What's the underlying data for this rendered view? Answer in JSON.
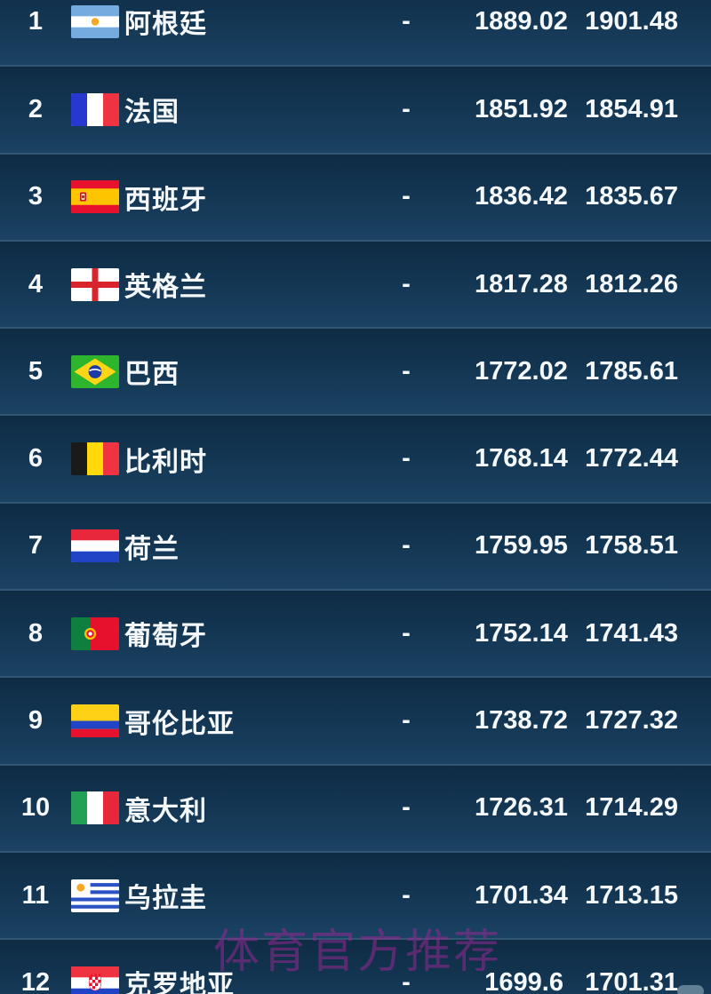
{
  "table": {
    "rows": [
      {
        "rank": "1",
        "country": "阿根廷",
        "flag": "argentina-flag",
        "move": "-",
        "points_current": "1889.02",
        "points_previous": "1901.48"
      },
      {
        "rank": "2",
        "country": "法国",
        "flag": "france-flag",
        "move": "-",
        "points_current": "1851.92",
        "points_previous": "1854.91"
      },
      {
        "rank": "3",
        "country": "西班牙",
        "flag": "spain-flag",
        "move": "-",
        "points_current": "1836.42",
        "points_previous": "1835.67"
      },
      {
        "rank": "4",
        "country": "英格兰",
        "flag": "england-flag",
        "move": "-",
        "points_current": "1817.28",
        "points_previous": "1812.26"
      },
      {
        "rank": "5",
        "country": "巴西",
        "flag": "brazil-flag",
        "move": "-",
        "points_current": "1772.02",
        "points_previous": "1785.61"
      },
      {
        "rank": "6",
        "country": "比利时",
        "flag": "belgium-flag",
        "move": "-",
        "points_current": "1768.14",
        "points_previous": "1772.44"
      },
      {
        "rank": "7",
        "country": "荷兰",
        "flag": "netherlands-flag",
        "move": "-",
        "points_current": "1759.95",
        "points_previous": "1758.51"
      },
      {
        "rank": "8",
        "country": "葡萄牙",
        "flag": "portugal-flag",
        "move": "-",
        "points_current": "1752.14",
        "points_previous": "1741.43"
      },
      {
        "rank": "9",
        "country": "哥伦比亚",
        "flag": "colombia-flag",
        "move": "-",
        "points_current": "1738.72",
        "points_previous": "1727.32"
      },
      {
        "rank": "10",
        "country": "意大利",
        "flag": "italy-flag",
        "move": "-",
        "points_current": "1726.31",
        "points_previous": "1714.29"
      },
      {
        "rank": "11",
        "country": "乌拉圭",
        "flag": "uruguay-flag",
        "move": "-",
        "points_current": "1701.34",
        "points_previous": "1713.15"
      },
      {
        "rank": "12",
        "country": "克罗地亚",
        "flag": "croatia-flag",
        "move": "-",
        "points_current": "1699.6",
        "points_previous": "1701.31"
      }
    ]
  },
  "watermark": {
    "text": "体育官方推荐"
  },
  "colors": {
    "background": "#112f4a",
    "row_gradient_top": "#0f2b44",
    "row_gradient_bottom": "#1b4263",
    "separator": "#305674",
    "text": "#f4f8fb",
    "watermark": "rgba(150,40,145,0.55)"
  }
}
